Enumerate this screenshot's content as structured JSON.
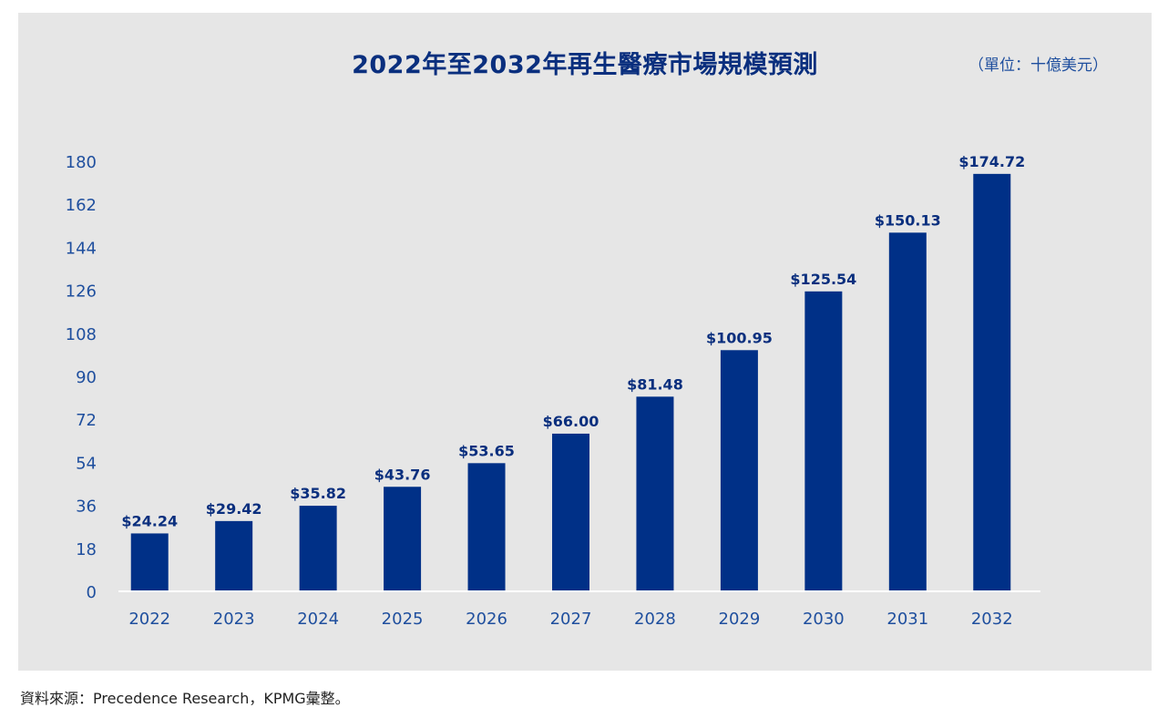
{
  "chart_data": {
    "type": "bar",
    "title": "2022年至2032年再生醫療市場規模預測",
    "unit": "（單位：十億美元）",
    "categories": [
      "2022",
      "2023",
      "2024",
      "2025",
      "2026",
      "2027",
      "2028",
      "2029",
      "2030",
      "2031",
      "2032"
    ],
    "values": [
      24.24,
      29.42,
      35.82,
      43.76,
      53.65,
      66.0,
      81.48,
      100.95,
      125.54,
      150.13,
      174.72
    ],
    "value_labels": [
      "$24.24",
      "$29.42",
      "$35.82",
      "$43.76",
      "$53.65",
      "$66.00",
      "$81.48",
      "$100.95",
      "$125.54",
      "$150.13",
      "$174.72"
    ],
    "yticks": [
      0,
      18,
      36,
      54,
      72,
      90,
      108,
      126,
      144,
      162,
      180
    ],
    "ylim": [
      0,
      180
    ],
    "xlabel": "",
    "ylabel": "",
    "grid": false,
    "legend": "none",
    "bar_color": "#003087",
    "background_color": "#e6e6e6",
    "axis_text_color": "#1f4f9e",
    "label_text_color": "#0a2f7e"
  },
  "footer": {
    "source": "資料來源：Precedence Research，KPMG彙整。"
  }
}
